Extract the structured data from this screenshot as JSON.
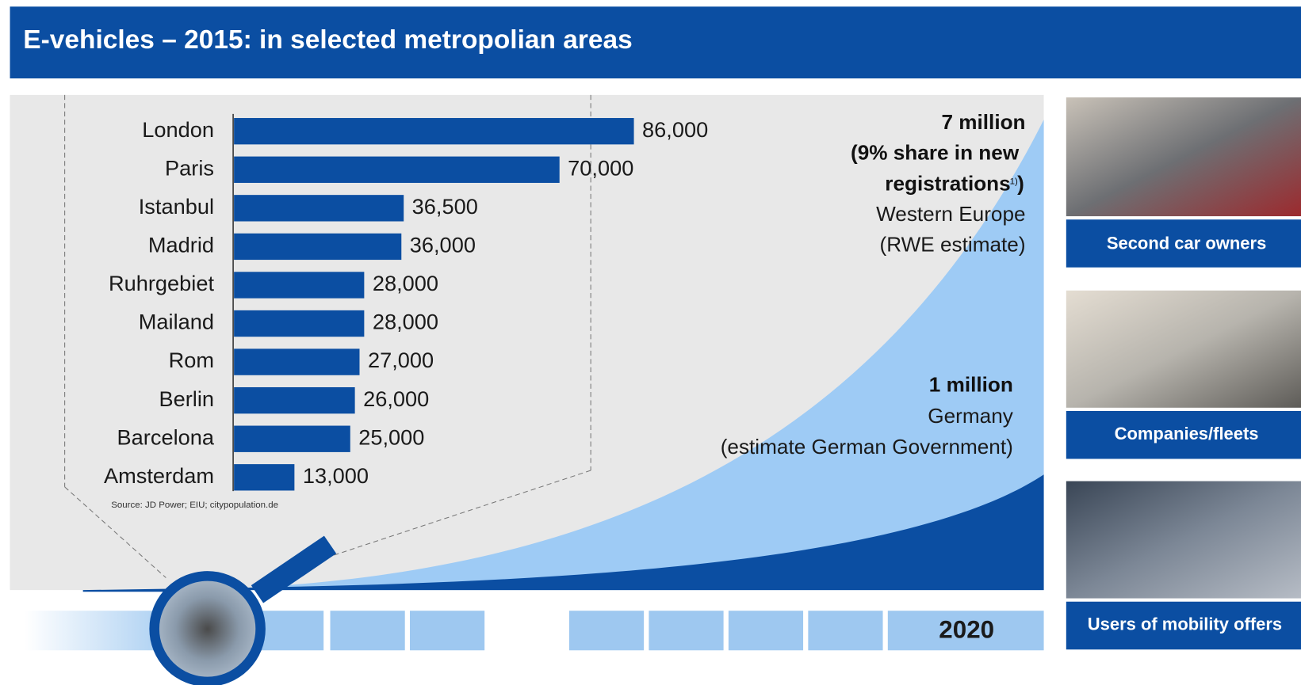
{
  "header": {
    "title": "E-vehicles – 2015: in selected metropolian areas"
  },
  "chart_data": {
    "type": "bar",
    "orientation": "horizontal",
    "categories": [
      "London",
      "Paris",
      "Istanbul",
      "Madrid",
      "Ruhrgebiet",
      "Mailand",
      "Rom",
      "Berlin",
      "Barcelona",
      "Amsterdam"
    ],
    "values": [
      86000,
      70000,
      36500,
      36000,
      28000,
      28000,
      27000,
      26000,
      25000,
      13000
    ],
    "value_labels": [
      "86,000",
      "70,000",
      "36,500",
      "36,000",
      "28,000",
      "28,000",
      "27,000",
      "26,000",
      "25,000",
      "13,000"
    ],
    "color": "#0b4ea2",
    "source": "Source: JD Power; EIU; citypopulation.de"
  },
  "annotations": {
    "western_europe": {
      "bold": [
        "7 million",
        "(9% share in new",
        "registrations"
      ],
      "footnote": "1)",
      "normal": [
        "Western Europe",
        "(RWE estimate)"
      ]
    },
    "germany": {
      "bold": [
        "1 million"
      ],
      "normal": [
        "Germany",
        "(estimate German Government)"
      ]
    }
  },
  "timeline": {
    "label": "2020"
  },
  "panels": [
    "Second car owners",
    "Companies/fleets",
    "Users of mobility offers"
  ]
}
